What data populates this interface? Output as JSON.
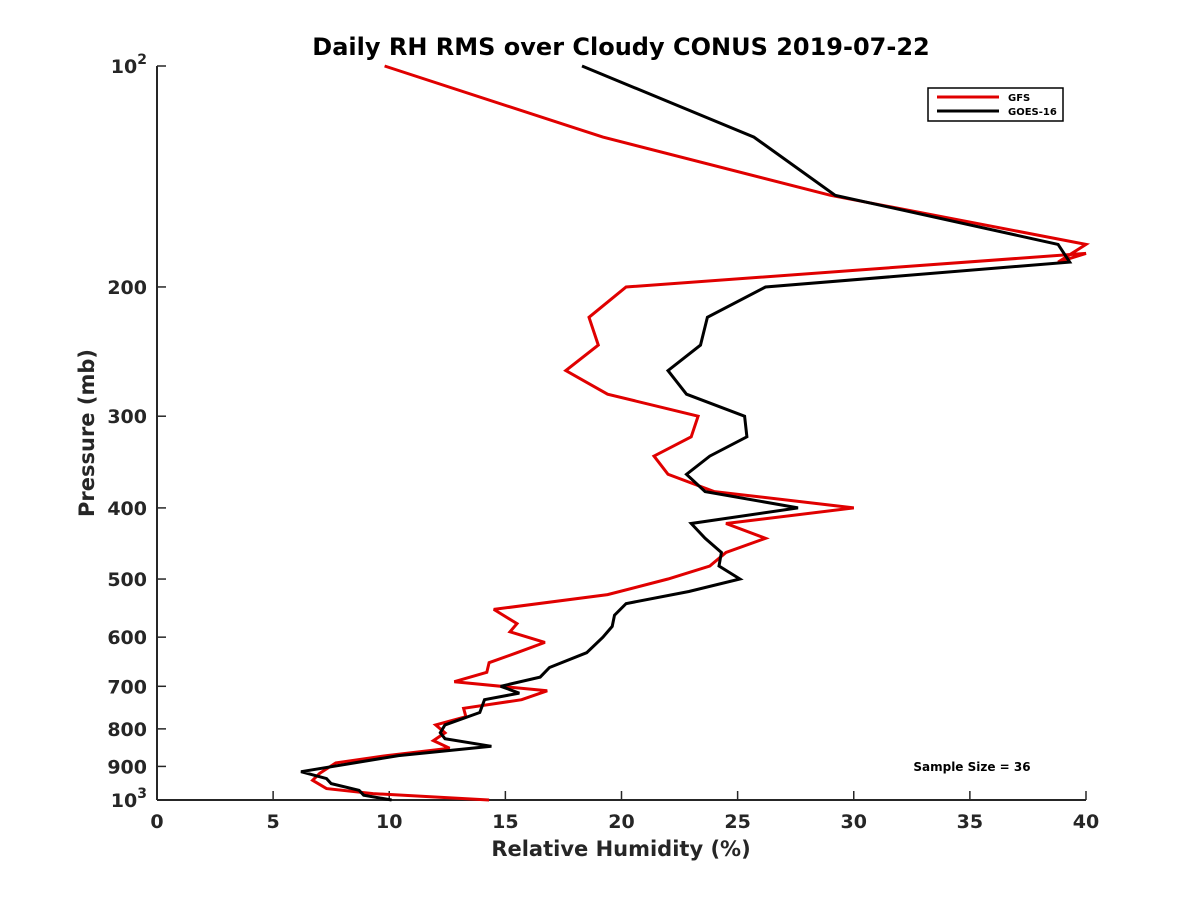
{
  "chart_data": {
    "type": "line",
    "title": "Daily RH RMS over Cloudy CONUS 2019-07-22",
    "xlabel": "Relative Humidity (%)",
    "ylabel": "Pressure (mb)",
    "xlim": [
      0,
      40
    ],
    "ylim": [
      100,
      1000
    ],
    "yscale": "log",
    "yreversed": true,
    "grid": false,
    "legend_position": "top-right",
    "annotation": "Sample Size = 36",
    "x_ticks": [
      "0",
      "5",
      "10",
      "15",
      "20",
      "25",
      "30",
      "35",
      "40"
    ],
    "x_tick_values": [
      0,
      5,
      10,
      15,
      20,
      25,
      30,
      35,
      40
    ],
    "y_ticks": [
      {
        "value": 100,
        "base": "10",
        "exp": "2"
      },
      {
        "value": 200,
        "label": "200"
      },
      {
        "value": 300,
        "label": "300"
      },
      {
        "value": 400,
        "label": "400"
      },
      {
        "value": 500,
        "label": "500"
      },
      {
        "value": 600,
        "label": "600"
      },
      {
        "value": 700,
        "label": "700"
      },
      {
        "value": 800,
        "label": "800"
      },
      {
        "value": 900,
        "label": "900"
      },
      {
        "value": 1000,
        "base": "10",
        "exp": "3"
      }
    ],
    "series": [
      {
        "name": "GFS",
        "color": "#e00000",
        "points": [
          [
            9.8,
            100
          ],
          [
            19.2,
            125
          ],
          [
            29.0,
            150
          ],
          [
            40.0,
            175
          ],
          [
            38.8,
            185
          ],
          [
            40.0,
            180
          ],
          [
            20.2,
            200
          ],
          [
            18.6,
            220
          ],
          [
            19.0,
            240
          ],
          [
            17.6,
            260
          ],
          [
            19.4,
            280
          ],
          [
            23.3,
            300
          ],
          [
            23.0,
            320
          ],
          [
            21.4,
            340
          ],
          [
            22.0,
            360
          ],
          [
            24.0,
            380
          ],
          [
            30.0,
            400
          ],
          [
            24.5,
            420
          ],
          [
            26.2,
            440
          ],
          [
            24.5,
            460
          ],
          [
            23.8,
            480
          ],
          [
            22.0,
            500
          ],
          [
            19.4,
            525
          ],
          [
            14.5,
            550
          ],
          [
            15.5,
            575
          ],
          [
            15.2,
            590
          ],
          [
            16.7,
            610
          ],
          [
            15.5,
            630
          ],
          [
            14.3,
            650
          ],
          [
            14.2,
            670
          ],
          [
            12.8,
            690
          ],
          [
            16.8,
            710
          ],
          [
            15.7,
            730
          ],
          [
            13.2,
            750
          ],
          [
            13.3,
            770
          ],
          [
            12.0,
            790
          ],
          [
            12.4,
            810
          ],
          [
            11.9,
            830
          ],
          [
            12.6,
            850
          ],
          [
            9.9,
            870
          ],
          [
            7.7,
            890
          ],
          [
            7.0,
            920
          ],
          [
            6.7,
            940
          ],
          [
            7.3,
            965
          ],
          [
            9.3,
            980
          ],
          [
            14.3,
            1000
          ]
        ]
      },
      {
        "name": "GOES-16",
        "color": "#000000",
        "points": [
          [
            18.3,
            100
          ],
          [
            25.7,
            125
          ],
          [
            29.2,
            150
          ],
          [
            38.8,
            175
          ],
          [
            39.3,
            185
          ],
          [
            26.2,
            200
          ],
          [
            23.7,
            220
          ],
          [
            23.4,
            240
          ],
          [
            22.0,
            260
          ],
          [
            22.8,
            280
          ],
          [
            25.3,
            300
          ],
          [
            25.4,
            320
          ],
          [
            23.8,
            340
          ],
          [
            22.8,
            360
          ],
          [
            23.6,
            380
          ],
          [
            27.6,
            400
          ],
          [
            23.0,
            420
          ],
          [
            23.6,
            440
          ],
          [
            24.3,
            460
          ],
          [
            24.2,
            480
          ],
          [
            25.1,
            500
          ],
          [
            22.9,
            520
          ],
          [
            20.2,
            540
          ],
          [
            19.7,
            560
          ],
          [
            19.6,
            580
          ],
          [
            19.2,
            600
          ],
          [
            18.5,
            630
          ],
          [
            16.9,
            660
          ],
          [
            16.5,
            680
          ],
          [
            14.8,
            700
          ],
          [
            15.6,
            715
          ],
          [
            14.1,
            730
          ],
          [
            13.9,
            760
          ],
          [
            12.4,
            790
          ],
          [
            12.2,
            810
          ],
          [
            12.4,
            825
          ],
          [
            14.4,
            845
          ],
          [
            10.4,
            870
          ],
          [
            8.5,
            890
          ],
          [
            6.2,
            915
          ],
          [
            7.3,
            935
          ],
          [
            7.5,
            950
          ],
          [
            8.7,
            970
          ],
          [
            8.9,
            985
          ],
          [
            10.1,
            1000
          ]
        ]
      }
    ]
  }
}
